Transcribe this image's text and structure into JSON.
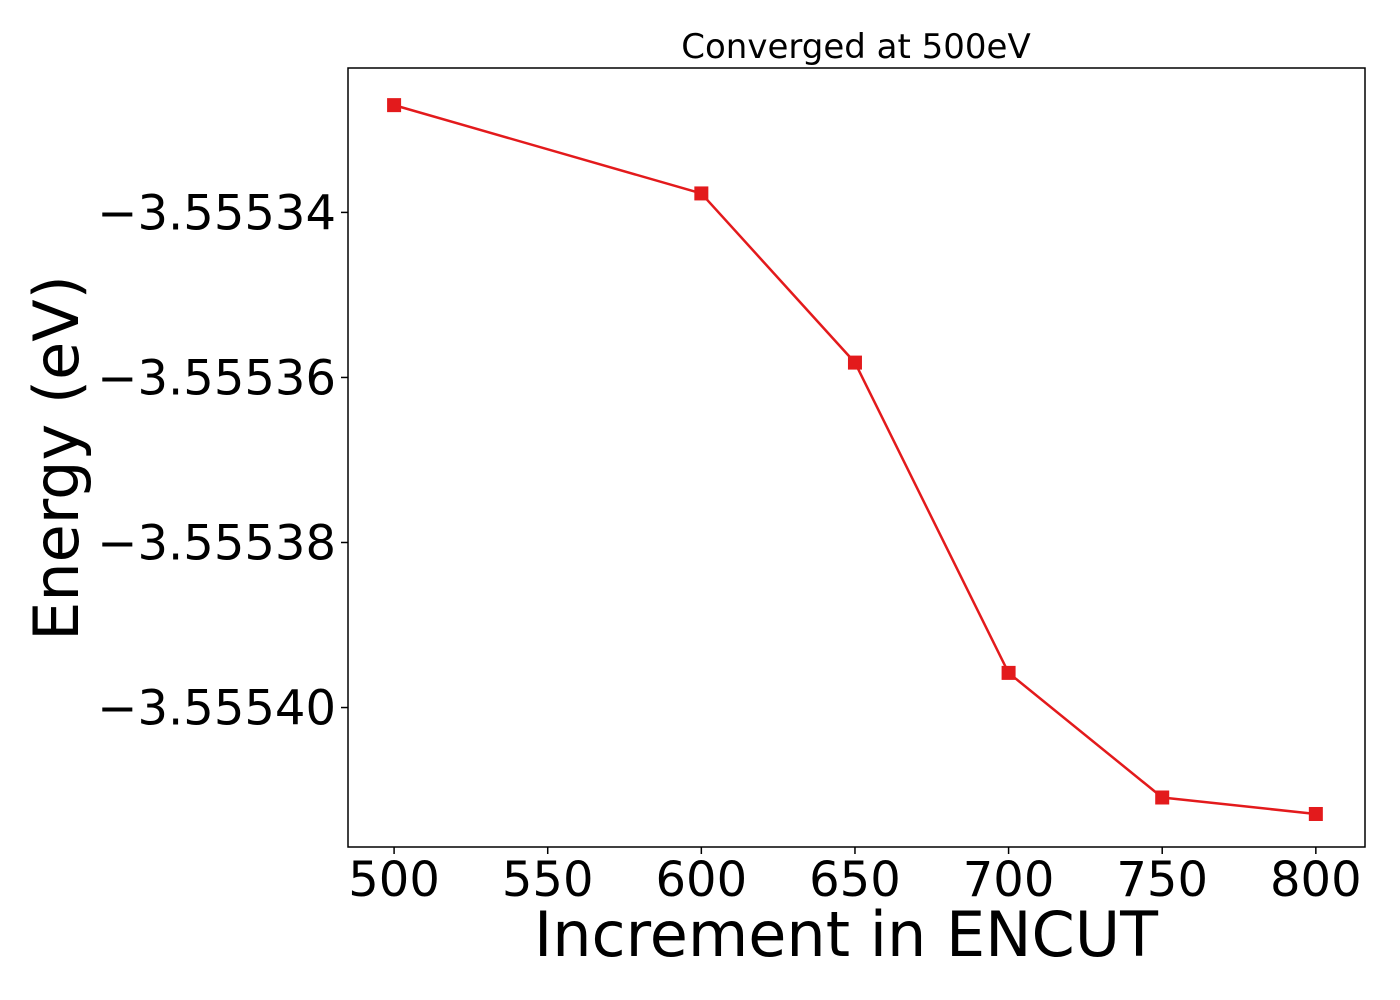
{
  "chart_data": {
    "type": "line",
    "title": "Converged at 500eV",
    "xlabel": "Increment in ENCUT",
    "ylabel": "Energy (eV)",
    "x": [
      500,
      600,
      650,
      700,
      750,
      800
    ],
    "series": [
      {
        "values": [
          -3.555327,
          -3.5553377,
          -3.5553582,
          -3.5553958,
          -3.5554109,
          -3.5554129
        ],
        "color": "#e31a1c",
        "marker": "square"
      }
    ],
    "xlim": [
      485,
      816
    ],
    "ylim": [
      -3.5554169,
      -3.5553225
    ],
    "xticks": [
      500,
      550,
      600,
      650,
      700,
      750,
      800
    ],
    "xtick_labels": [
      "500",
      "550",
      "600",
      "650",
      "700",
      "750",
      "800"
    ],
    "yticks": [
      -3.55534,
      -3.55536,
      -3.55538,
      -3.5554
    ],
    "ytick_labels": [
      "−3.55534",
      "−3.55536",
      "−3.55538",
      "−3.55540"
    ],
    "grid": false,
    "legend": false
  }
}
